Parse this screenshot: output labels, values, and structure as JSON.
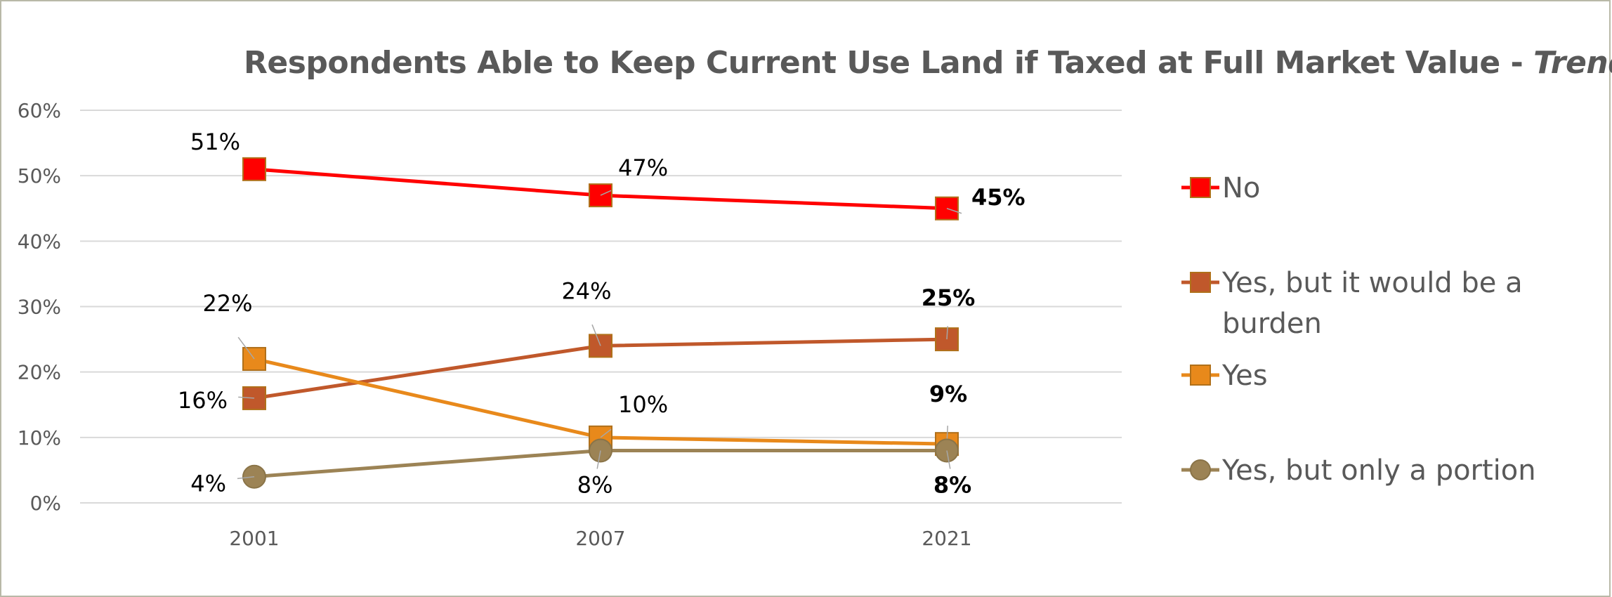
{
  "chart_data": {
    "type": "line",
    "title": "Respondents Able to Keep Current Use Land if Taxed at Full Market Value - ",
    "title_italic": "Trend",
    "categories": [
      "2001",
      "2007",
      "2021"
    ],
    "ylim": [
      0,
      60
    ],
    "yticks": [
      "0%",
      "10%",
      "20%",
      "30%",
      "40%",
      "50%",
      "60%"
    ],
    "grid": true,
    "legend_position": "right",
    "series": [
      {
        "name": "No",
        "values": [
          51,
          47,
          45
        ],
        "labels": [
          "51%",
          "47%",
          "45%"
        ],
        "color": "#ff0000",
        "marker": "square"
      },
      {
        "name": "Yes, but it would be a burden",
        "legend_lines": [
          "Yes, but it would be a",
          "burden"
        ],
        "values": [
          16,
          24,
          25
        ],
        "labels": [
          "16%",
          "24%",
          "25%"
        ],
        "color": "#c0582b",
        "marker": "square"
      },
      {
        "name": "Yes",
        "values": [
          22,
          10,
          9
        ],
        "labels": [
          "22%",
          "10%",
          "9%"
        ],
        "color": "#e8891b",
        "marker": "square"
      },
      {
        "name": "Yes, but only a portion",
        "values": [
          4,
          8,
          8
        ],
        "labels": [
          "4%",
          "8%",
          "8%"
        ],
        "color": "#9c8355",
        "marker": "circle"
      }
    ]
  }
}
